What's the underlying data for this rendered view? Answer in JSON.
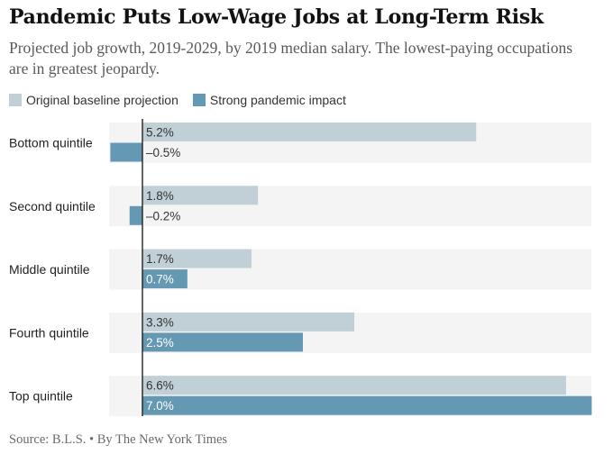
{
  "header": {
    "title": "Pandemic Puts Low-Wage Jobs at Long-Term Risk",
    "subtitle": "Projected job growth, 2019-2029, by 2019 median salary. The lowest-paying occupations are in greatest jeopardy."
  },
  "legend": {
    "items": [
      {
        "label": "Original baseline projection",
        "color": "#c1cfd6"
      },
      {
        "label": "Strong pandemic impact",
        "color": "#6598b3"
      }
    ]
  },
  "footer": {
    "source": "Source: B.L.S. • By The New York Times"
  },
  "chart_data": {
    "type": "bar",
    "orientation": "horizontal",
    "categories": [
      "Bottom quintile",
      "Second quintile",
      "Middle quintile",
      "Fourth quintile",
      "Top quintile"
    ],
    "series": [
      {
        "name": "Original baseline projection",
        "color": "#c1cfd6",
        "values": [
          5.2,
          1.8,
          1.7,
          3.3,
          6.6
        ],
        "labels": [
          "5.2%",
          "1.8%",
          "1.7%",
          "3.3%",
          "6.6%"
        ]
      },
      {
        "name": "Strong pandemic impact",
        "color": "#6598b3",
        "values": [
          -0.5,
          -0.2,
          0.7,
          2.5,
          7.0
        ],
        "labels": [
          "–0.5%",
          "–0.2%",
          "0.7%",
          "2.5%",
          "7.0%"
        ]
      }
    ],
    "xlim": [
      -0.5,
      7.0
    ],
    "grid": false,
    "legend_position": "top-left",
    "row_background": "#f4f4f4"
  }
}
